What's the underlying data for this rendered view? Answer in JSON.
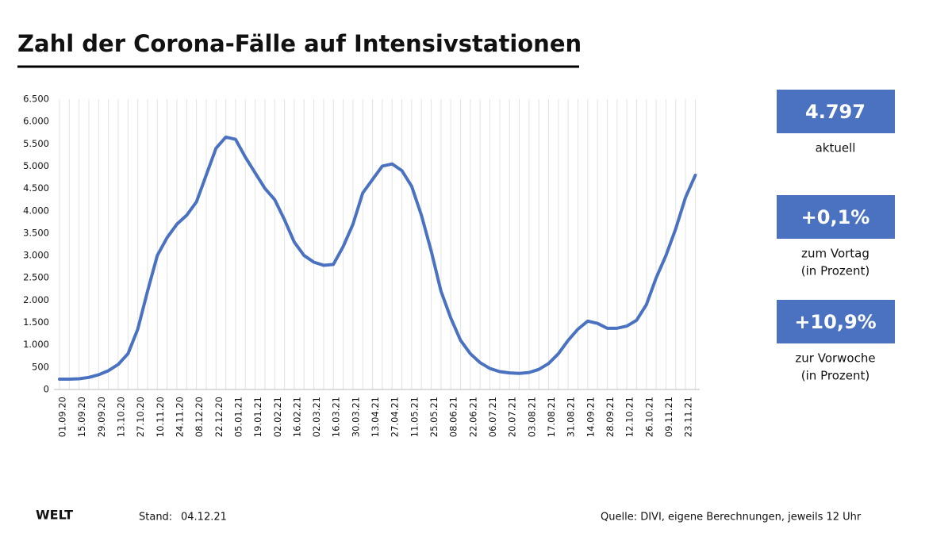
{
  "chart_data": {
    "type": "line",
    "title": "Zahl der Corona-Fälle auf Intensivstationen",
    "categories": [
      "01.09.20",
      null,
      "15.09.20",
      null,
      "29.09.20",
      null,
      "13.10.20",
      null,
      "27.10.20",
      null,
      "10.11.20",
      null,
      "24.11.20",
      null,
      "08.12.20",
      null,
      "22.12.20",
      null,
      "05.01.21",
      null,
      "19.01.21",
      null,
      "02.02.21",
      null,
      "16.02.21",
      null,
      "02.03.21",
      null,
      "16.03.21",
      null,
      "30.03.21",
      null,
      "13.04.21",
      null,
      "27.04.21",
      null,
      "11.05.21",
      null,
      "25.05.21",
      null,
      "08.06.21",
      null,
      "22.06.21",
      null,
      "06.07.21",
      null,
      "20.07.21",
      null,
      "03.08.21",
      null,
      "17.08.21",
      null,
      "31.08.21",
      null,
      "14.09.21",
      null,
      "28.09.21",
      null,
      "12.10.21",
      null,
      "26.10.21",
      null,
      "09.11.21",
      null,
      "23.11.21",
      null
    ],
    "series": [
      {
        "color": "#4a72c0",
        "values": [
          230,
          230,
          240,
          270,
          330,
          420,
          560,
          800,
          1350,
          2200,
          3000,
          3400,
          3700,
          3900,
          4200,
          4800,
          5400,
          5650,
          5600,
          5200,
          4850,
          4500,
          4250,
          3800,
          3300,
          3000,
          2850,
          2780,
          2800,
          3200,
          3700,
          4400,
          4700,
          5000,
          5050,
          4900,
          4550,
          3900,
          3100,
          2200,
          1600,
          1100,
          800,
          600,
          470,
          400,
          370,
          360,
          380,
          450,
          580,
          800,
          1100,
          1350,
          1530,
          1480,
          1370,
          1370,
          1420,
          1550,
          1900,
          2500,
          3000,
          3600,
          4300,
          4797
        ]
      }
    ],
    "ylim": [
      0,
      6500
    ],
    "yticks": [
      0,
      500,
      {
        "value": 1000,
        "label": "1.000"
      },
      {
        "value": 1500,
        "label": "1.500"
      },
      {
        "value": 2000,
        "label": "2.000"
      },
      {
        "value": 2500,
        "label": "2.500"
      },
      {
        "value": 3000,
        "label": "3.000"
      },
      {
        "value": 3500,
        "label": "3.500"
      },
      {
        "value": 4000,
        "label": "4.000"
      },
      {
        "value": 4500,
        "label": "4.500"
      },
      {
        "value": 5000,
        "label": "5.000"
      },
      {
        "value": 5500,
        "label": "5.500"
      },
      {
        "value": 6000,
        "label": "6.000"
      },
      {
        "value": 6500,
        "label": "6.500"
      }
    ],
    "grid": "x"
  },
  "panels": [
    {
      "value": "4.797",
      "lines": [
        "aktuell"
      ]
    },
    {
      "value": "+0,1%",
      "lines": [
        "zum Vortag",
        "(in Prozent)"
      ]
    },
    {
      "value": "+10,9%",
      "lines": [
        "zur Vorwoche",
        "(in Prozent)"
      ]
    }
  ],
  "footer": {
    "brand": "WELT",
    "stand_label": "Stand:",
    "stand_date": "04.12.21",
    "source": "Quelle: DIVI, eigene Berechnungen, jeweils 12 Uhr"
  }
}
